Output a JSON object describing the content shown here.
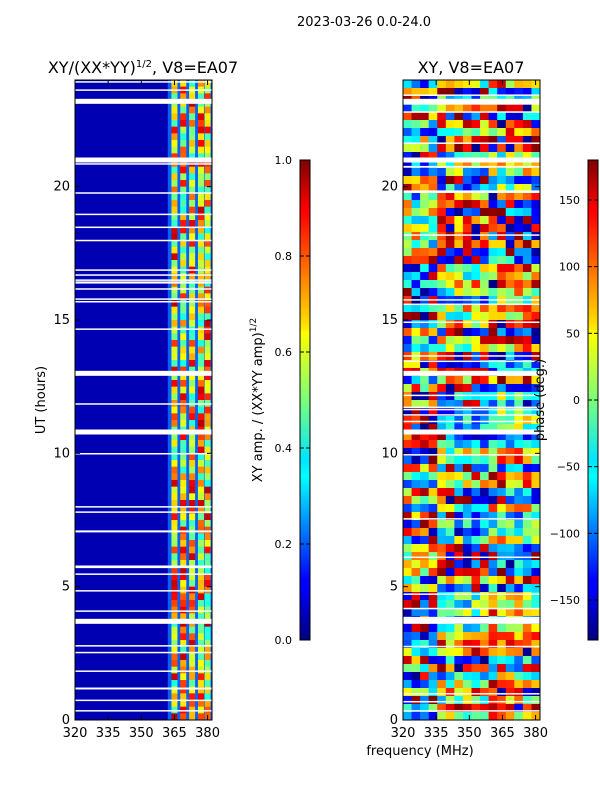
{
  "figure_title": "2023-03-26 0.0-24.0",
  "chart_data": [
    {
      "type": "heatmap",
      "title": "XY/(XX*YY)",
      "title_exponent": "1/2",
      "title_suffix": ", V8=EA07",
      "xlabel": "",
      "ylabel": "UT (hours)",
      "xlim": [
        320,
        382
      ],
      "ylim": [
        0,
        24
      ],
      "xticks": [
        320,
        335,
        350,
        365,
        380
      ],
      "yticks": [
        0,
        5,
        10,
        15,
        20
      ],
      "colorbar": {
        "label": "XY amp. / (XX*YY amp)",
        "label_exponent": "1/2",
        "range": [
          0.0,
          1.0
        ],
        "ticks": [
          0.0,
          0.2,
          0.4,
          0.6,
          0.8,
          1.0
        ],
        "tick_labels": [
          "0.0",
          "0.2",
          "0.4",
          "0.6",
          "0.8",
          "1.0"
        ],
        "colormap": "jet"
      },
      "structure": {
        "active_band_mhz": [
          362,
          382
        ],
        "channel_stripes_mhz": [
          365,
          369,
          373,
          377,
          380
        ],
        "background_value": 0.05,
        "stripe_value_range": [
          0.4,
          0.95
        ],
        "flagged_gaps_hours": [
          3.7,
          10.8,
          13.0,
          21.0,
          23.2
        ]
      }
    },
    {
      "type": "heatmap",
      "title": "XY, V8=EA07",
      "xlabel": "frequency (MHz)",
      "ylabel": "",
      "xlim": [
        320,
        382
      ],
      "ylim": [
        0,
        24
      ],
      "xticks": [
        320,
        335,
        350,
        365,
        380
      ],
      "yticks": [
        0,
        5,
        10,
        15,
        20
      ],
      "colorbar": {
        "label": "phase (deg.)",
        "range": [
          -180,
          180
        ],
        "ticks": [
          -150,
          -100,
          -50,
          0,
          50,
          100,
          150
        ],
        "tick_labels": [
          "−150",
          "−100",
          "−50",
          "0",
          "50",
          "100",
          "150"
        ],
        "colormap": "jet"
      },
      "structure": {
        "background_value_range": [
          -180,
          180
        ],
        "flagged_gaps_hours": [
          3.7,
          10.8,
          13.0,
          21.0,
          23.2
        ]
      }
    }
  ]
}
